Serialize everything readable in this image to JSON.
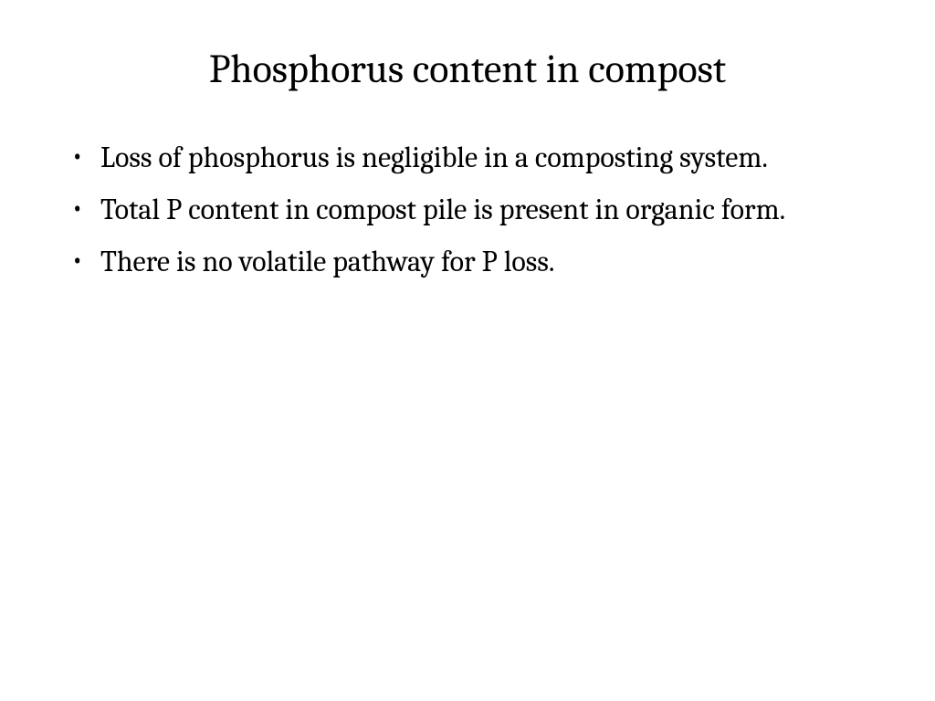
{
  "slide": {
    "title": "Phosphorus content in compost",
    "bullets": [
      {
        "text": "Loss of phosphorus is negligible in a composting system.",
        "justify": true
      },
      {
        "text": "Total P content in compost pile is present in organic form.",
        "justify": false
      },
      {
        "text": "There is no volatile pathway for P loss.",
        "justify": false
      }
    ],
    "title_fontsize": 44,
    "body_fontsize": 32,
    "text_color": "#000000",
    "background_color": "#ffffff"
  }
}
